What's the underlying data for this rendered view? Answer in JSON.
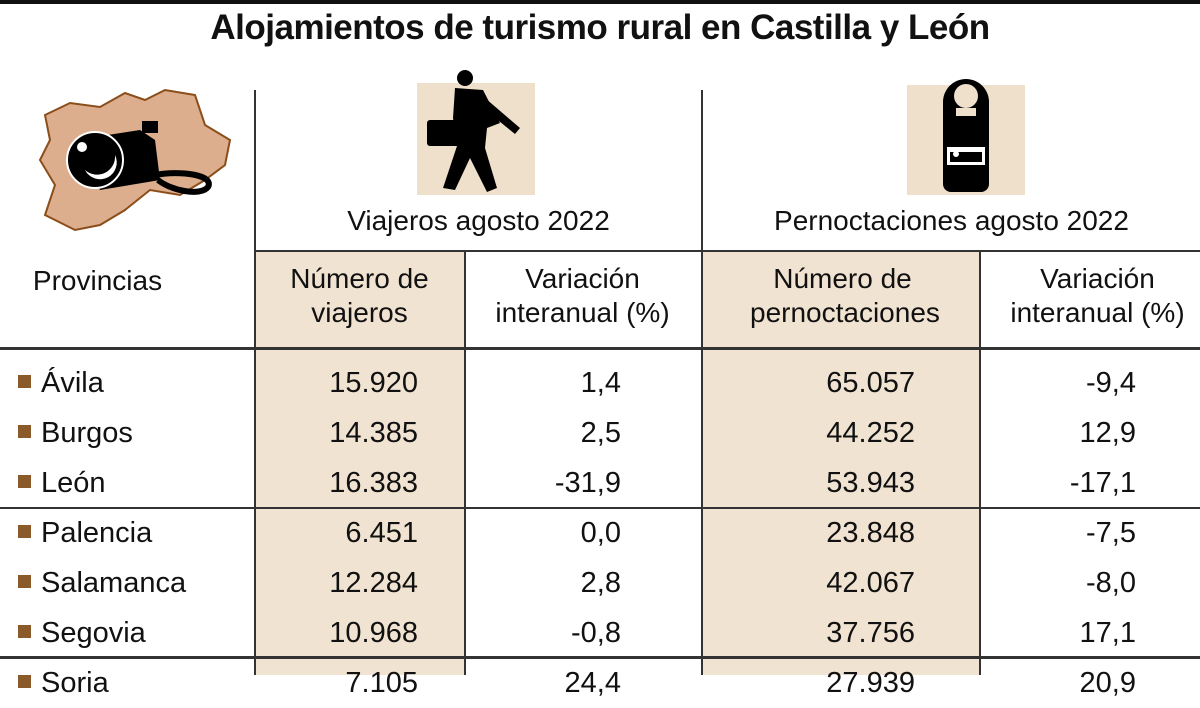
{
  "title": "Alojamientos de turismo rural en Castilla y León",
  "colors": {
    "highlight_column": "#f1e3d1",
    "bullet": "#8b5a2b",
    "map_fill": "#dcae8e",
    "map_outline": "#8b4e1a"
  },
  "icons": {
    "logo": "map-camera-icon",
    "viajeros": "traveler-with-suitcase-icon",
    "pernoctaciones": "door-hanger-bed-icon"
  },
  "chart_data": {
    "type": "table",
    "title": "Alojamientos de turismo rural en Castilla y León",
    "row_header": "Provincias",
    "groups": [
      {
        "label": "Viajeros agosto 2022",
        "columns": [
          "Número de viajeros",
          "Variación interanual (%)"
        ]
      },
      {
        "label": "Pernoctaciones agosto 2022",
        "columns": [
          "Número de pernoctaciones",
          "Variación interanual (%)"
        ]
      }
    ],
    "rows": [
      {
        "provincia": "Ávila",
        "viajeros": "15.920",
        "var_viajeros": "1,4",
        "pernoctaciones": "65.057",
        "var_pernoctaciones": "-9,4"
      },
      {
        "provincia": "Burgos",
        "viajeros": "14.385",
        "var_viajeros": "2,5",
        "pernoctaciones": "44.252",
        "var_pernoctaciones": "12,9"
      },
      {
        "provincia": "León",
        "viajeros": "16.383",
        "var_viajeros": "-31,9",
        "pernoctaciones": "53.943",
        "var_pernoctaciones": "-17,1"
      },
      {
        "provincia": "Palencia",
        "viajeros": "6.451",
        "var_viajeros": "0,0",
        "pernoctaciones": "23.848",
        "var_pernoctaciones": "-7,5"
      },
      {
        "provincia": "Salamanca",
        "viajeros": "12.284",
        "var_viajeros": "2,8",
        "pernoctaciones": "42.067",
        "var_pernoctaciones": "-8,0"
      },
      {
        "provincia": "Segovia",
        "viajeros": "10.968",
        "var_viajeros": "-0,8",
        "pernoctaciones": "37.756",
        "var_pernoctaciones": "17,1"
      },
      {
        "provincia": "Soria",
        "viajeros": "7.105",
        "var_viajeros": "24,4",
        "pernoctaciones": "27.939",
        "var_pernoctaciones": "20,9"
      }
    ]
  }
}
